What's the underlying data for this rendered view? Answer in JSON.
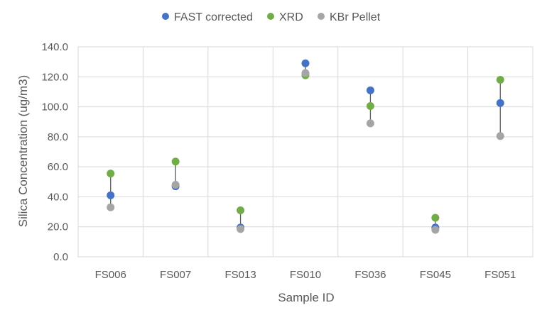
{
  "chart_data": {
    "type": "scatter",
    "title": "",
    "xlabel": "Sample ID",
    "ylabel": "Silica Concentration (ug/m3)",
    "ylim": [
      0,
      140
    ],
    "ytick_step": 20,
    "ytick_labels": [
      "0.0",
      "20.0",
      "40.0",
      "60.0",
      "80.0",
      "100.0",
      "120.0",
      "140.0"
    ],
    "grid": "vertical and horizontal",
    "legend_position": "top",
    "categories": [
      "FS006",
      "FS007",
      "FS013",
      "FS010",
      "FS036",
      "FS045",
      "FS051"
    ],
    "series": [
      {
        "name": "FAST corrected",
        "color": "#4472C4",
        "values": [
          41.0,
          47.0,
          19.5,
          129.0,
          111.0,
          19.5,
          102.5
        ]
      },
      {
        "name": "XRD",
        "color": "#70AD47",
        "values": [
          55.5,
          63.5,
          31.0,
          121.0,
          100.5,
          26.0,
          118.0
        ]
      },
      {
        "name": "KBr Pellet",
        "color": "#A5A5A5",
        "values": [
          33.0,
          48.0,
          18.5,
          122.5,
          89.0,
          18.0,
          80.5
        ]
      }
    ],
    "range_line_color": "#595959",
    "gridline_color": "#D9D9D9"
  }
}
